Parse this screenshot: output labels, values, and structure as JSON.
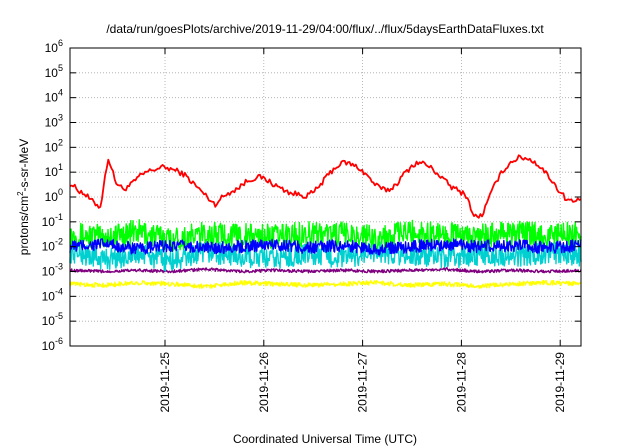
{
  "chart_data": {
    "type": "line",
    "title": "/data/run/goesPlots/archive/2019-11-29/04:00/flux/../flux/5daysEarthDataFluxes.txt",
    "xlabel": "Coordinated Universal Time (UTC)",
    "ylabel_parts": [
      "protons/cm",
      "2",
      "-s-sr-MeV"
    ],
    "y_scale": "log",
    "ylim": [
      1e-06,
      1000000.0
    ],
    "y_ticks": [
      {
        "exp": "-6",
        "value": 1e-06
      },
      {
        "exp": "-5",
        "value": 1e-05
      },
      {
        "exp": "-4",
        "value": 0.0001
      },
      {
        "exp": "-3",
        "value": 0.001
      },
      {
        "exp": "-2",
        "value": 0.01
      },
      {
        "exp": "-1",
        "value": 0.1
      },
      {
        "exp": "0",
        "value": 1
      },
      {
        "exp": "1",
        "value": 10
      },
      {
        "exp": "2",
        "value": 100
      },
      {
        "exp": "3",
        "value": 1000
      },
      {
        "exp": "4",
        "value": 10000
      },
      {
        "exp": "5",
        "value": 100000
      },
      {
        "exp": "6",
        "value": 1000000
      }
    ],
    "y_tick_base": "10",
    "x_range_days": [
      "2019-11-24 03:00",
      "2019-11-29 03:00"
    ],
    "x_ticks": [
      "2019-11-25",
      "2019-11-26",
      "2019-11-27",
      "2019-11-28",
      "2019-11-29"
    ],
    "grid": true,
    "series": [
      {
        "color": "#ff0000",
        "values_log10": [
          0.55,
          0.3,
          0.1,
          -0.2,
          -0.4,
          1.6,
          0.6,
          0.3,
          0.5,
          0.8,
          1.0,
          1.1,
          1.2,
          1.15,
          1.05,
          0.9,
          0.6,
          0.3,
          0.0,
          -0.3,
          0.0,
          0.2,
          0.35,
          0.6,
          0.75,
          0.8,
          0.65,
          0.45,
          0.3,
          0.15,
          0.1,
          0.05,
          0.2,
          0.55,
          0.95,
          1.25,
          1.4,
          1.3,
          1.15,
          0.85,
          0.5,
          0.3,
          0.3,
          0.6,
          1.0,
          1.3,
          1.4,
          1.25,
          1.0,
          0.7,
          0.4,
          0.25,
          0.05,
          -0.8,
          -0.75,
          0.0,
          0.7,
          1.15,
          1.45,
          1.6,
          1.55,
          1.4,
          1.1,
          0.75,
          0.3,
          -0.05,
          -0.2,
          -0.1
        ]
      },
      {
        "color": "#00ff00",
        "values_log10": [
          -1.5,
          -1.6,
          -1.4,
          -1.7,
          -1.5,
          -1.55,
          -1.6,
          -1.45,
          -1.5,
          -1.65,
          -1.4,
          -1.5,
          -1.6,
          -1.45,
          -1.55,
          -1.5
        ]
      },
      {
        "color": "#00d0d0",
        "values_log10": [
          -2.2,
          -2.5,
          -2.3,
          -2.6,
          -2.2,
          -2.4,
          -2.5,
          -2.3,
          -2.45,
          -2.2,
          -2.35,
          -2.5,
          -2.3,
          -2.4,
          -2.25,
          -2.35
        ]
      },
      {
        "color": "#0000ff",
        "values_log10": [
          -2.0,
          -1.9,
          -2.1,
          -1.95,
          -2.05,
          -2.0,
          -1.9,
          -2.05,
          -1.95,
          -2.1,
          -2.0,
          -1.9,
          -2.0,
          -1.95,
          -2.05,
          -1.95
        ]
      },
      {
        "color": "#800080",
        "values_log10": [
          -2.95,
          -3.0,
          -2.95,
          -3.0,
          -2.9,
          -3.0,
          -2.95,
          -3.0,
          -2.95,
          -3.0,
          -2.95,
          -2.9,
          -3.0,
          -2.95,
          -3.0,
          -2.95
        ]
      },
      {
        "color": "#ffff00",
        "values_log10": [
          -3.5,
          -3.55,
          -3.45,
          -3.5,
          -3.6,
          -3.45,
          -3.5,
          -3.55,
          -3.5,
          -3.45,
          -3.55,
          -3.5,
          -3.6,
          -3.5,
          -3.45,
          -3.5
        ]
      }
    ]
  }
}
